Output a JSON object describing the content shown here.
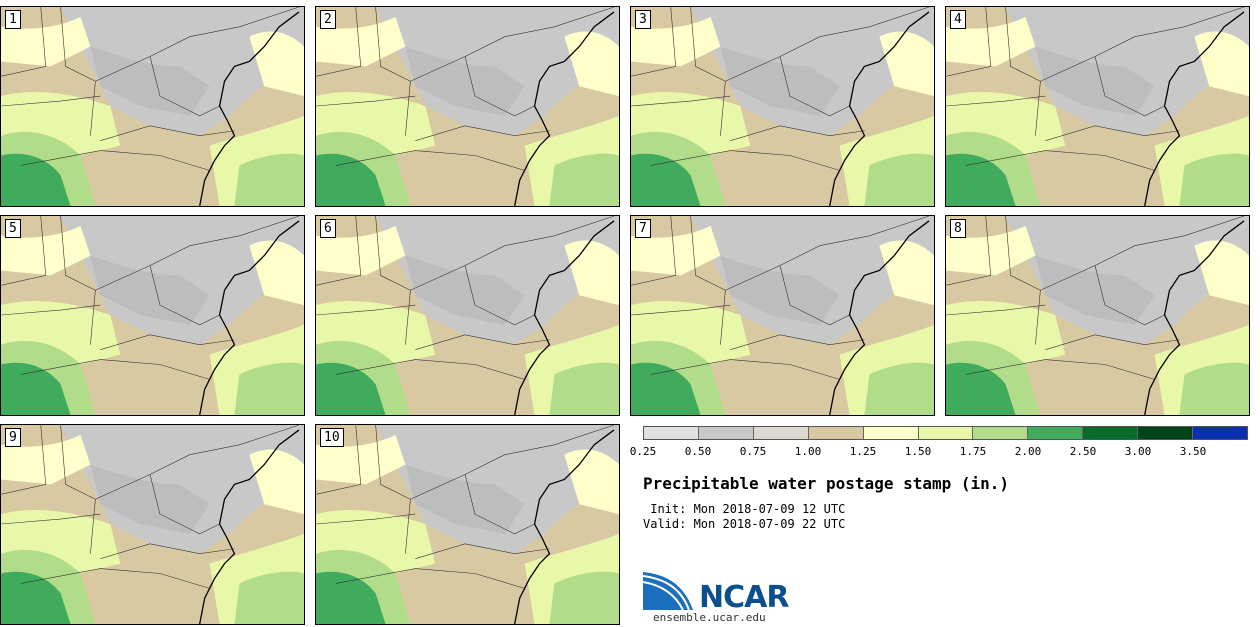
{
  "title": "Precipitable water postage stamp (in.)",
  "init_line": " Init: Mon 2018-07-09 12 UTC",
  "valid_line": "Valid: Mon 2018-07-09 22 UTC",
  "members": [
    "1",
    "2",
    "3",
    "4",
    "5",
    "6",
    "7",
    "8",
    "9",
    "10"
  ],
  "colorbar": {
    "colors": [
      "#e0e0e0",
      "#c8c8c8",
      "#dcdad0",
      "#d9c9a3",
      "#ffffcc",
      "#e9f8a8",
      "#b1dd8b",
      "#41ab5d",
      "#006d2c",
      "#00441b",
      "#0a30b0"
    ],
    "tick_labels": [
      "0.25",
      "0.50",
      "0.75",
      "1.00",
      "1.25",
      "1.50",
      "1.75",
      "2.00",
      "2.50",
      "3.00",
      "3.50"
    ]
  },
  "logo": {
    "name": "NCAR",
    "site": "ensemble.ucar.edu"
  }
}
